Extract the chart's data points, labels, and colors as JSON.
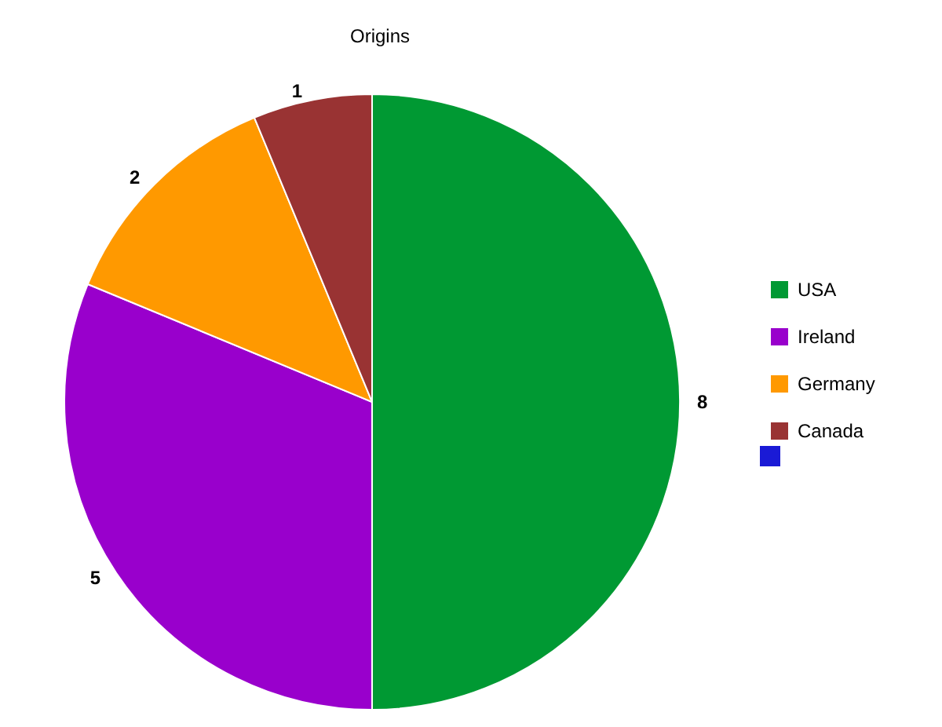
{
  "chart_data": {
    "type": "pie",
    "title": "Origins",
    "categories": [
      "USA",
      "Ireland",
      "Germany",
      "Canada",
      null
    ],
    "values": [
      8,
      5,
      2,
      1,
      null
    ],
    "colors": [
      "#009933",
      "#9900cc",
      "#ff9900",
      "#993333",
      "#1a1ad6"
    ],
    "value_labels": [
      "8",
      "5",
      "2",
      "1",
      null
    ],
    "legend": "right"
  }
}
